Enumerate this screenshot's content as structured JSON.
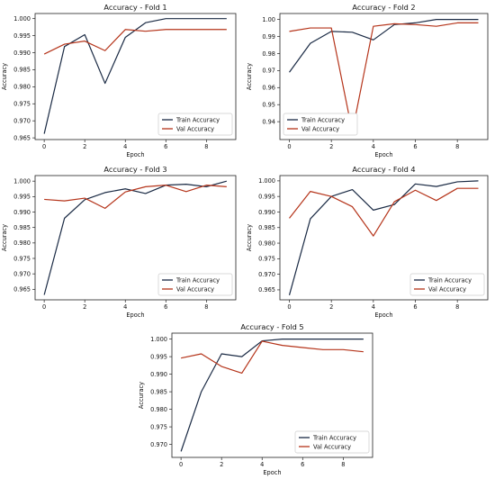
{
  "chart_data": [
    {
      "type": "line",
      "title": "Accuracy - Fold 1",
      "xlabel": "Epoch",
      "ylabel": "Accuracy",
      "x": [
        0,
        1,
        2,
        3,
        4,
        5,
        6,
        7,
        8,
        9
      ],
      "xticks": [
        "0",
        "2",
        "4",
        "6",
        "8"
      ],
      "yticks": [
        "0.965",
        "0.970",
        "0.975",
        "0.980",
        "0.985",
        "0.990",
        "0.995",
        "1.000"
      ],
      "ylim": [
        0.9645,
        1.0015
      ],
      "legend_position": "lower-right",
      "series": [
        {
          "name": "Train Accuracy",
          "color": "#1a2a44",
          "values": [
            0.9662,
            0.9918,
            0.9953,
            0.981,
            0.9945,
            0.9988,
            1.0,
            1.0,
            1.0,
            1.0
          ]
        },
        {
          "name": "Val Accuracy",
          "color": "#b5341a",
          "values": [
            0.9896,
            0.9925,
            0.9934,
            0.9906,
            0.9968,
            0.9963,
            0.9968,
            0.9968,
            0.9968,
            0.9968
          ]
        }
      ]
    },
    {
      "type": "line",
      "title": "Accuracy - Fold 2",
      "xlabel": "Epoch",
      "ylabel": "Accuracy",
      "x": [
        0,
        1,
        2,
        3,
        4,
        5,
        6,
        7,
        8,
        9
      ],
      "xticks": [
        "0",
        "2",
        "4",
        "6",
        "8"
      ],
      "yticks": [
        "0.94",
        "0.95",
        "0.96",
        "0.97",
        "0.98",
        "0.99",
        "1.00"
      ],
      "ylim": [
        0.9295,
        1.0035
      ],
      "legend_position": "lower-left",
      "series": [
        {
          "name": "Train Accuracy",
          "color": "#1a2a44",
          "values": [
            0.969,
            0.986,
            0.993,
            0.9925,
            0.988,
            0.997,
            0.998,
            1.0,
            1.0,
            1.0
          ]
        },
        {
          "name": "Val Accuracy",
          "color": "#b5341a",
          "values": [
            0.993,
            0.995,
            0.995,
            0.934,
            0.996,
            0.9975,
            0.997,
            0.996,
            0.998,
            0.998
          ]
        }
      ]
    },
    {
      "type": "line",
      "title": "Accuracy - Fold 3",
      "xlabel": "Epoch",
      "ylabel": "Accuracy",
      "x": [
        0,
        1,
        2,
        3,
        4,
        5,
        6,
        7,
        8,
        9
      ],
      "xticks": [
        "0",
        "2",
        "4",
        "6",
        "8"
      ],
      "yticks": [
        "0.965",
        "0.970",
        "0.975",
        "0.980",
        "0.985",
        "0.990",
        "0.995",
        "1.000"
      ],
      "ylim": [
        0.9616,
        1.0018
      ],
      "legend_position": "lower-right",
      "series": [
        {
          "name": "Train Accuracy",
          "color": "#1a2a44",
          "values": [
            0.9632,
            0.988,
            0.994,
            0.9963,
            0.9975,
            0.996,
            0.9987,
            0.999,
            0.9982,
            1.0
          ]
        },
        {
          "name": "Val Accuracy",
          "color": "#b5341a",
          "values": [
            0.9941,
            0.9936,
            0.9945,
            0.9912,
            0.9965,
            0.9982,
            0.9987,
            0.9966,
            0.9987,
            0.9982
          ]
        }
      ]
    },
    {
      "type": "line",
      "title": "Accuracy - Fold 4",
      "xlabel": "Epoch",
      "ylabel": "Accuracy",
      "x": [
        0,
        1,
        2,
        3,
        4,
        5,
        6,
        7,
        8,
        9
      ],
      "xticks": [
        "0",
        "2",
        "4",
        "6",
        "8"
      ],
      "yticks": [
        "0.965",
        "0.970",
        "0.975",
        "0.980",
        "0.985",
        "0.990",
        "0.995",
        "1.000"
      ],
      "ylim": [
        0.9618,
        1.0017
      ],
      "legend_position": "lower-right",
      "series": [
        {
          "name": "Train Accuracy",
          "color": "#1a2a44",
          "values": [
            0.9633,
            0.9878,
            0.995,
            0.9972,
            0.9906,
            0.9924,
            0.999,
            0.9982,
            0.9997,
            1.0
          ]
        },
        {
          "name": "Val Accuracy",
          "color": "#b5341a",
          "values": [
            0.988,
            0.9966,
            0.995,
            0.9917,
            0.9823,
            0.9933,
            0.997,
            0.9937,
            0.9976,
            0.9976
          ]
        }
      ]
    },
    {
      "type": "line",
      "title": "Accuracy - Fold 5",
      "xlabel": "Epoch",
      "ylabel": "Accuracy",
      "x": [
        0,
        1,
        2,
        3,
        4,
        5,
        6,
        7,
        8,
        9
      ],
      "xticks": [
        "0",
        "2",
        "4",
        "6",
        "8"
      ],
      "yticks": [
        "0.970",
        "0.975",
        "0.980",
        "0.985",
        "0.990",
        "0.995",
        "1.000"
      ],
      "ylim": [
        0.9663,
        1.0017
      ],
      "legend_position": "lower-right",
      "series": [
        {
          "name": "Train Accuracy",
          "color": "#1a2a44",
          "values": [
            0.968,
            0.985,
            0.9958,
            0.995,
            0.9995,
            1.0,
            1.0,
            1.0,
            1.0,
            1.0
          ]
        },
        {
          "name": "Val Accuracy",
          "color": "#b5341a",
          "values": [
            0.9946,
            0.9958,
            0.9922,
            0.9903,
            0.9994,
            0.9982,
            0.9976,
            0.997,
            0.997,
            0.9964
          ]
        }
      ]
    }
  ]
}
